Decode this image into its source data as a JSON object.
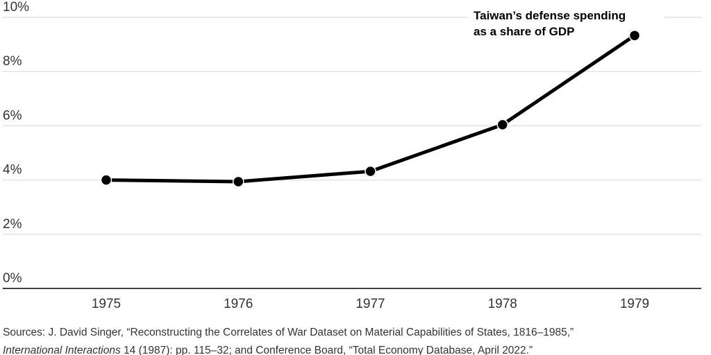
{
  "chart_data": {
    "type": "line",
    "title": "",
    "xlabel": "",
    "ylabel": "",
    "x": [
      "1975",
      "1976",
      "1977",
      "1978",
      "1979"
    ],
    "series": [
      {
        "name": "Taiwan’s defense spending as a share of GDP",
        "values": [
          4.0,
          3.94,
          4.32,
          6.04,
          9.33
        ]
      }
    ],
    "annotation_lines": [
      "Taiwan’s defense spending",
      "as a share of GDP"
    ],
    "ylim": [
      0,
      10
    ],
    "yticks": [
      0,
      2,
      4,
      6,
      8,
      10
    ],
    "ytick_labels": [
      "0%",
      "2%",
      "4%",
      "6%",
      "8%",
      "10%"
    ],
    "grid": true,
    "line_color": "#000000",
    "grid_color": "#e3e3e3"
  },
  "source": {
    "line1": "Sources: J. David Singer, “Reconstructing the Correlates of War Dataset on Material Capabilities of States, 1816–1985,”",
    "line2_italic": "International Interactions",
    "line2_rest": " 14 (1987): pp. 115–32; and Conference Board, “Total Economy Database, April 2022.”"
  }
}
